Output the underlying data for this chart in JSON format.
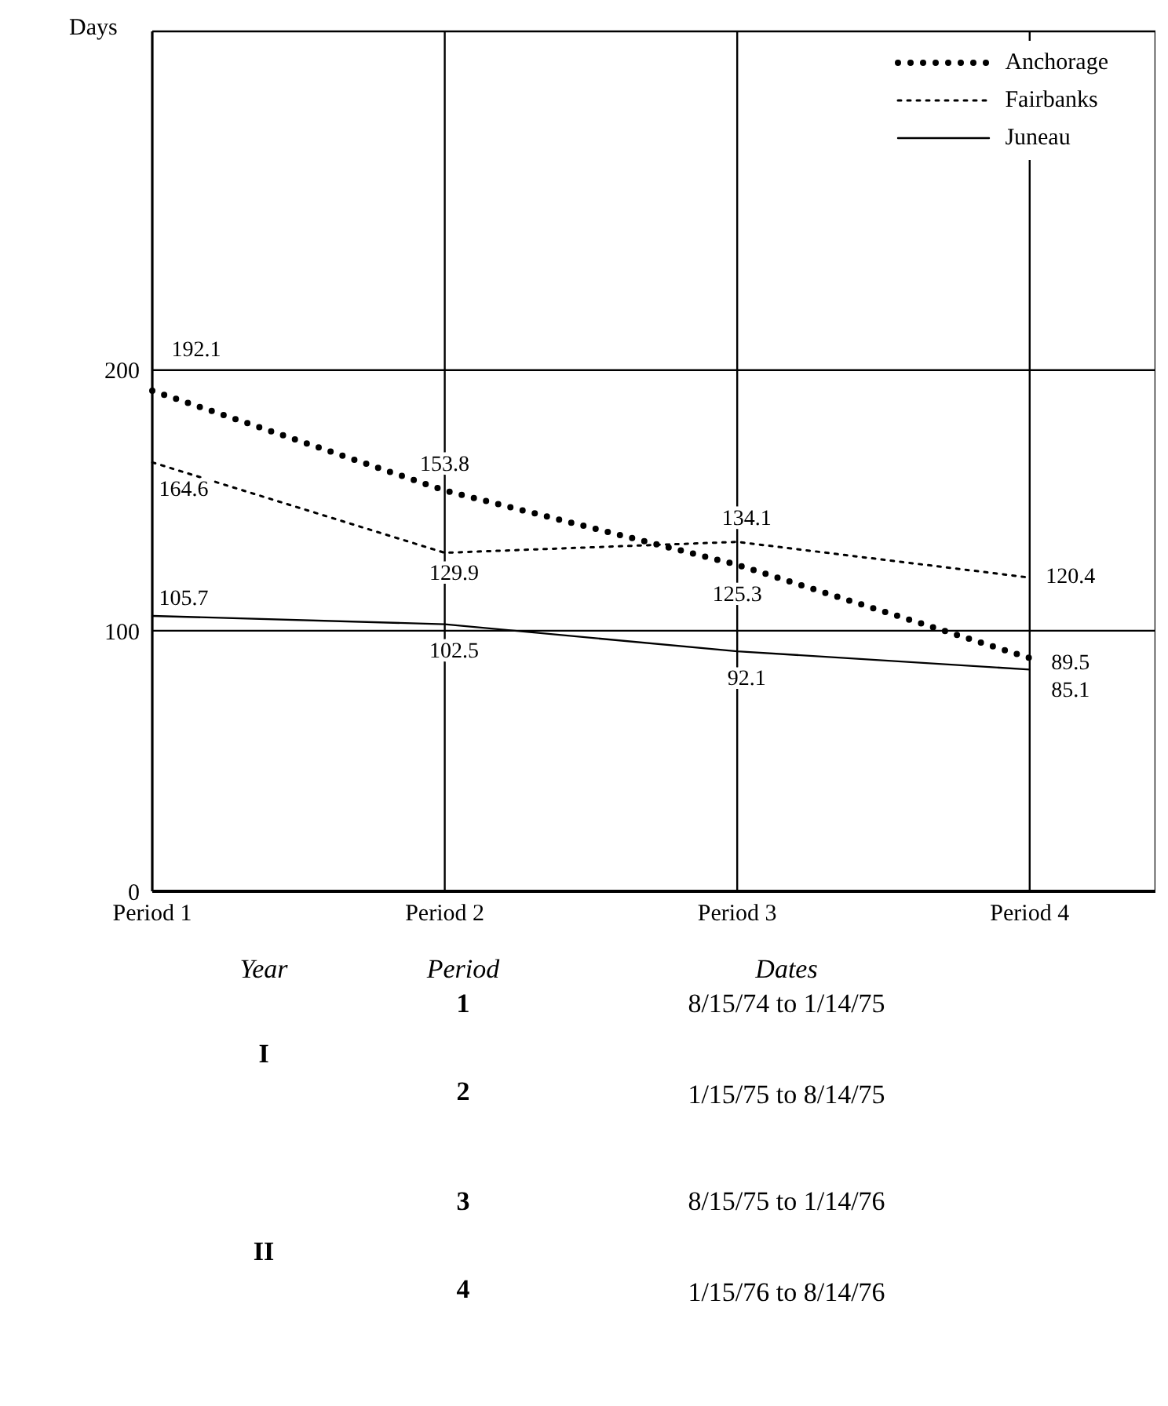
{
  "chart_data": {
    "type": "line",
    "ylabel": "Days",
    "categories": [
      "Period 1",
      "Period 2",
      "Period 3",
      "Period 4"
    ],
    "series": [
      {
        "name": "Anchorage",
        "color": "#000000",
        "line_style": "dotted",
        "values": [
          192.1,
          153.8,
          125.3,
          89.5
        ]
      },
      {
        "name": "Fairbanks",
        "color": "#000000",
        "line_style": "dashed",
        "values": [
          164.6,
          129.9,
          134.1,
          120.4
        ]
      },
      {
        "name": "Juneau",
        "color": "#000000",
        "line_style": "solid",
        "values": [
          105.7,
          102.5,
          92.1,
          85.1
        ]
      }
    ],
    "ylim": [
      0,
      330
    ],
    "yticks": [
      0,
      100,
      200
    ],
    "grid": true,
    "legend": "top right",
    "marker": "none",
    "data_labels": true,
    "annotations": [
      "Year",
      "Period",
      "Dates",
      "I",
      "1",
      "8/15/74 to 1/14/75",
      "2",
      "1/15/75 to 8/14/75",
      "II",
      "3",
      "8/15/75 to 1/14/76",
      "4",
      "1/15/76 to 8/14/76"
    ]
  }
}
